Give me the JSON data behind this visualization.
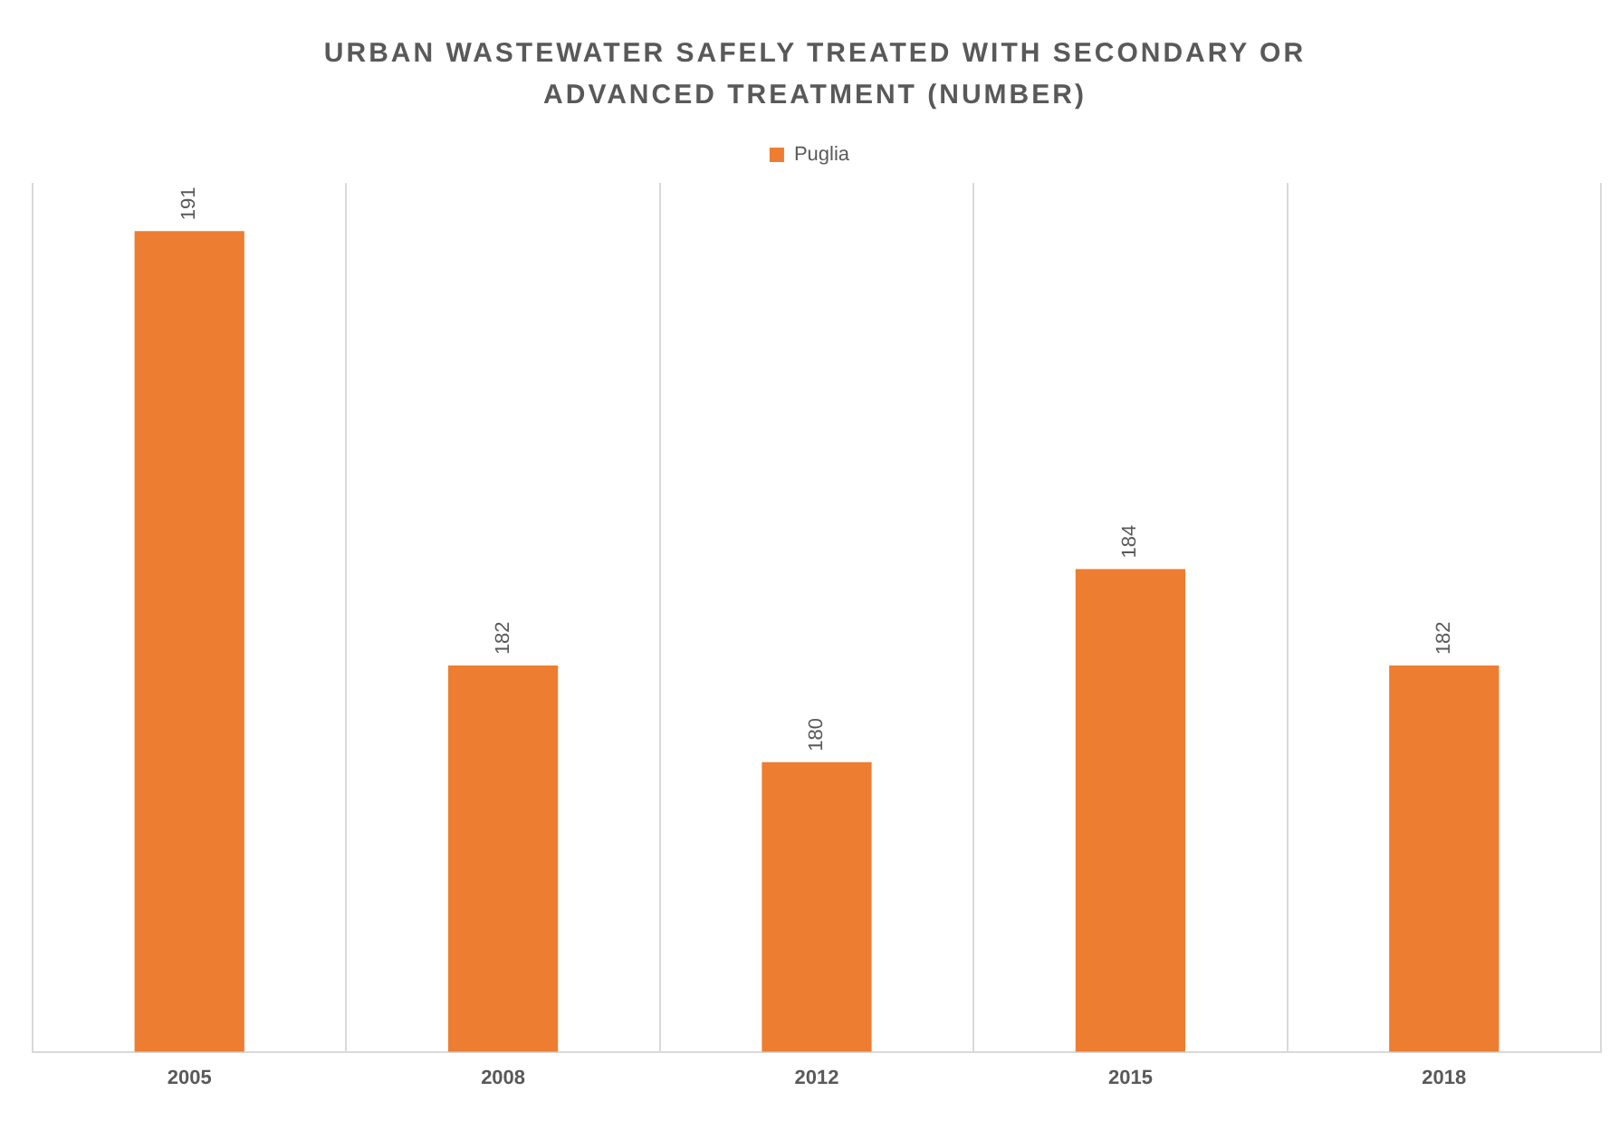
{
  "chart_data": {
    "type": "bar",
    "title": "URBAN WASTEWATER SAFELY TREATED WITH SECONDARY OR ADVANCED TREATMENT (NUMBER)",
    "categories": [
      "2005",
      "2008",
      "2012",
      "2015",
      "2018"
    ],
    "series": [
      {
        "name": "Puglia",
        "color": "#ed7d31",
        "values": [
          191,
          182,
          180,
          184,
          182
        ]
      }
    ],
    "ylim": [
      174,
      192
    ],
    "tick_labels": "x",
    "grid": "x",
    "legend": "top",
    "data_labels": true
  }
}
